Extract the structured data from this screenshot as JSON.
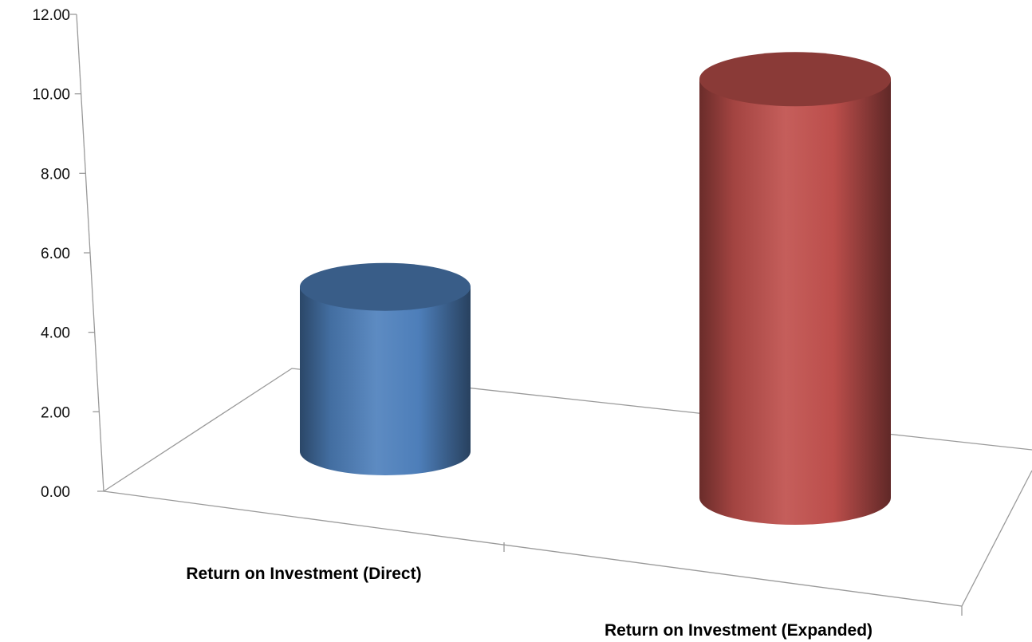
{
  "chart_data": {
    "type": "bar",
    "style": "3d-cylinder",
    "categories": [
      "Return on Investment (Direct)",
      "Return on Investment (Expanded)"
    ],
    "values": [
      4.6,
      11.7
    ],
    "colors": [
      "#4f81bd",
      "#c0504d"
    ],
    "title": "",
    "xlabel": "",
    "ylabel": "",
    "ylim": [
      0,
      12
    ],
    "yticks": [
      "0.00",
      "2.00",
      "4.00",
      "6.00",
      "8.00",
      "10.00",
      "12.00"
    ],
    "grid": false,
    "legend": "none"
  }
}
